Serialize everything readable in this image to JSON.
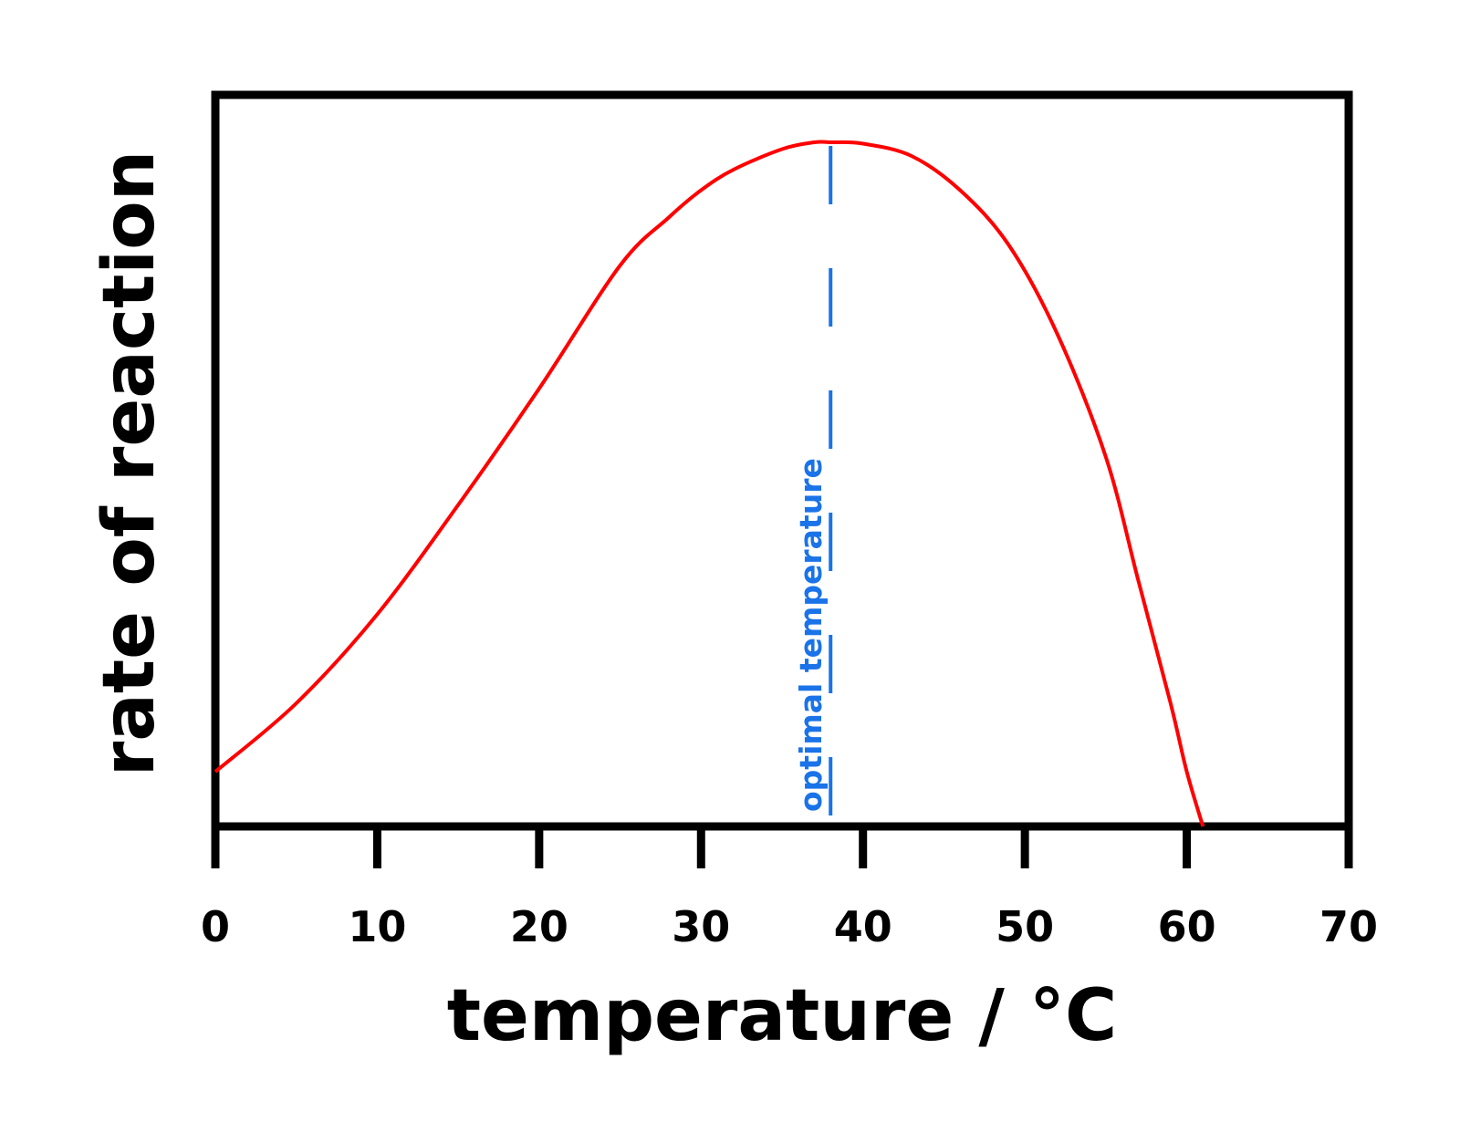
{
  "chart_data": {
    "type": "line",
    "title": "",
    "xlabel": "temperature / °C",
    "ylabel": "rate of reaction",
    "xlim": [
      0,
      70
    ],
    "xticks": [
      0,
      10,
      20,
      30,
      40,
      50,
      60,
      70
    ],
    "xtick_labels": [
      "0",
      "10",
      "20",
      "30",
      "40",
      "50",
      "60",
      "70"
    ],
    "y_ticks_shown": false,
    "grid": false,
    "ylim": [
      0,
      1
    ],
    "series": [
      {
        "x": [
          0,
          5,
          10,
          15,
          20,
          25,
          28,
          30,
          32,
          35,
          37,
          38,
          40,
          43,
          46,
          49,
          52,
          55,
          57,
          59,
          60,
          61
        ],
        "y": [
          0.08,
          0.18,
          0.31,
          0.47,
          0.64,
          0.82,
          0.89,
          0.93,
          0.96,
          0.99,
          1.0,
          1.0,
          0.998,
          0.98,
          0.93,
          0.85,
          0.72,
          0.54,
          0.36,
          0.18,
          0.08,
          0.0
        ],
        "color": "#ff0000"
      }
    ],
    "annotations": [
      {
        "type": "vertical-dashed-line",
        "x": 38,
        "label": "optimal temperature",
        "color": "#1a73e8"
      }
    ]
  }
}
